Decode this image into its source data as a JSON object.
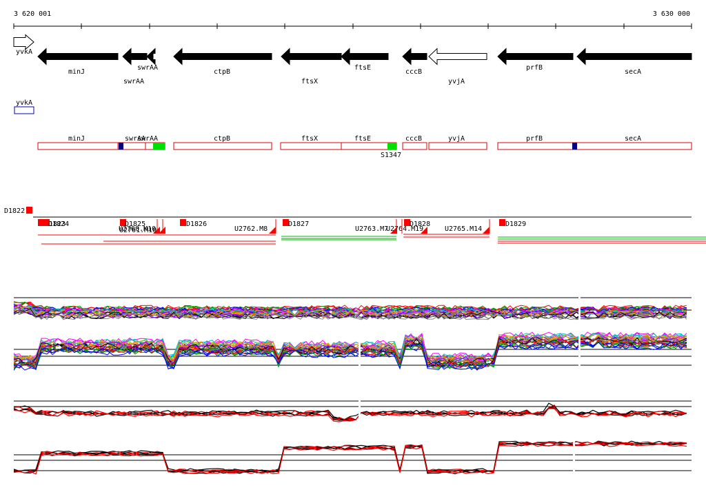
{
  "ruler": {
    "start_label": "3 620 001",
    "end_label": "3 630 000"
  },
  "genes": [
    {
      "id": "yvkA",
      "label": "yvkA",
      "strand": "+",
      "filled": false
    },
    {
      "id": "minJ",
      "label": "minJ",
      "strand": "-",
      "filled": true
    },
    {
      "id": "swrAA_a",
      "label": "swrAA",
      "strand": "-",
      "filled": true
    },
    {
      "id": "swrAA_b",
      "label": "swrAA",
      "strand": "-",
      "filled": true
    },
    {
      "id": "ctpB",
      "label": "ctpB",
      "strand": "-",
      "filled": true
    },
    {
      "id": "ftsX",
      "label": "ftsX",
      "strand": "-",
      "filled": true
    },
    {
      "id": "ftsE",
      "label": "ftsE",
      "strand": "-",
      "filled": true
    },
    {
      "id": "cccB",
      "label": "cccB",
      "strand": "-",
      "filled": true
    },
    {
      "id": "yvjA",
      "label": "yvjA",
      "strand": "-",
      "filled": false
    },
    {
      "id": "prfB",
      "label": "prfB",
      "strand": "-",
      "filled": true
    },
    {
      "id": "secA",
      "label": "secA",
      "strand": "-",
      "filled": true
    }
  ],
  "feature_track": {
    "yvkA_label": "yvkA",
    "boxes": [
      {
        "label": "minJ"
      },
      {
        "label": "swrAA"
      },
      {
        "label": "swrAA"
      },
      {
        "label": "ctpB"
      },
      {
        "label": "ftsX"
      },
      {
        "label": "ftsE"
      },
      {
        "label": "cccB"
      },
      {
        "label": "yvjA"
      },
      {
        "label": "prfB"
      },
      {
        "label": "secA"
      }
    ],
    "site_label": "S1347",
    "colors": {
      "outline": "#e00000",
      "marker_blue": "#000080",
      "marker_green": "#00e000",
      "yvkA_outline": "#0000c0"
    }
  },
  "transcripts": {
    "d_labels": [
      "D1822",
      "D1823",
      "D1824",
      "D1825",
      "D1826",
      "D1827",
      "D1828",
      "D1829"
    ],
    "u_labels": [
      "U2760.M10",
      "U2761.M10",
      "U2762.M8",
      "U2763.M7",
      "U2764.M19",
      "U2765.M14"
    ],
    "colors": {
      "marker": "#ff0000",
      "green": "#00b000",
      "red": "#ff0000"
    }
  },
  "expression": {
    "panel1_colors": [
      "#ff0000",
      "#00a000",
      "#0000ff",
      "#ff00ff",
      "#00c0c0",
      "#c0c000",
      "#ff8000",
      "#8000ff",
      "#000000",
      "#808080"
    ],
    "panel2_colors": [
      "#000000",
      "#ff0000"
    ]
  }
}
